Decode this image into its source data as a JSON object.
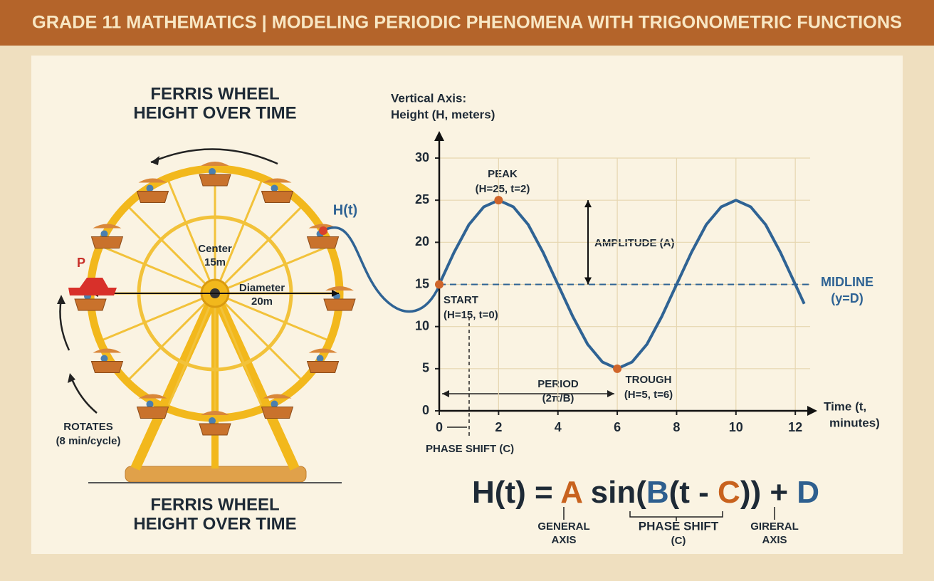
{
  "header": {
    "title": "GRADE 11 MATHEMATICS  |  MODELING PERIODIC PHENOMENA WITH TRIGONOMETRIC FUNCTIONS"
  },
  "wheel": {
    "title_top": [
      "FERRIS WHEEL",
      "HEIGHT OVER TIME"
    ],
    "title_bottom": [
      "FERRIS WHEEL",
      "HEIGHT OVER TIME"
    ],
    "center": [
      "Center",
      "15m"
    ],
    "diameter": [
      "Diameter",
      "20m"
    ],
    "point": "P",
    "curve_label": "H(t)",
    "rotates": [
      "ROTATES",
      "(8 min/cycle)"
    ]
  },
  "chart_data": {
    "type": "line",
    "y_label": [
      "Vertical Axis:",
      "Height (H, meters)"
    ],
    "x_label": [
      "Time (t,",
      "minutes)"
    ],
    "x": [
      0,
      0.5,
      1,
      1.5,
      2,
      2.5,
      3,
      3.5,
      4,
      4.5,
      5,
      5.5,
      6,
      6.5,
      7,
      7.5,
      8,
      8.5,
      9,
      9.5,
      10,
      10.5,
      11,
      11.5,
      12,
      12.3
    ],
    "values": [
      15,
      18.8,
      22.1,
      24.2,
      25,
      24.2,
      22.1,
      18.8,
      15,
      11.2,
      7.9,
      5.8,
      5,
      5.8,
      7.9,
      11.2,
      15,
      18.8,
      22.1,
      24.2,
      25,
      24.2,
      22.1,
      18.8,
      15,
      12.7
    ],
    "color": "#2f6394",
    "point_color": "#d0652a",
    "midline": 15,
    "xlim": [
      0,
      12.5
    ],
    "ylim": [
      0,
      30
    ],
    "xticks": [
      0,
      2,
      4,
      6,
      8,
      10,
      12
    ],
    "yticks": [
      0,
      5,
      10,
      15,
      20,
      25,
      30
    ],
    "grid": true,
    "annotations": {
      "peak": [
        "PEAK",
        "(H=25, t=2)"
      ],
      "start": [
        "START",
        "(H=15, t=0)"
      ],
      "trough": [
        "TROUGH",
        "(H=5, t=6)"
      ],
      "amplitude": "AMPLITUDE (A)",
      "midline": [
        "MIDLINE",
        "(y=D)"
      ],
      "period": [
        "PERIOD",
        "(2π/B)"
      ],
      "phase_shift": "PHASE SHIFT (C)"
    }
  },
  "formula": {
    "parts": [
      "H(t) = ",
      "A",
      " sin(",
      "B",
      "(t - ",
      "C",
      ")) + ",
      "D"
    ],
    "notes": {
      "a": [
        "GENERAL",
        "AXIS"
      ],
      "c": [
        "PHASE SHIFT",
        "(C)"
      ],
      "d": [
        "GIRERAL",
        "AXIS"
      ]
    }
  }
}
